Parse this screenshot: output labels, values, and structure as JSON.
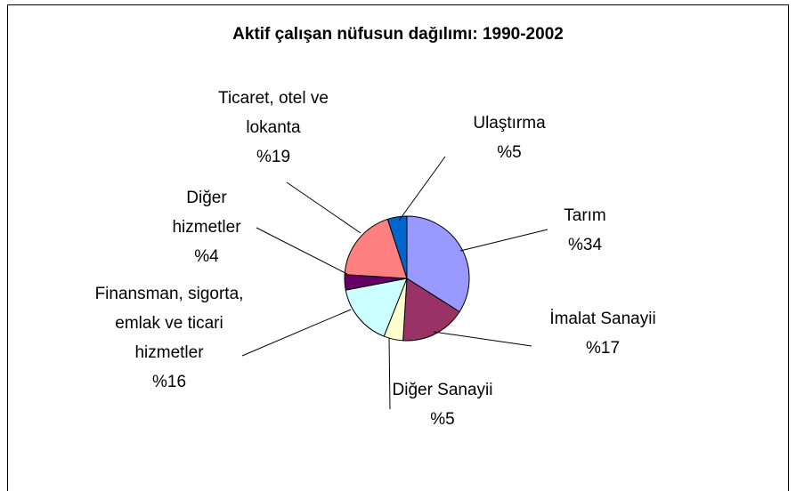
{
  "chart_data": {
    "type": "pie",
    "title": "Aktif çalışan nüfusun dağılımı: 1990-2002",
    "categories": [
      "Tarım",
      "İmalat Sanayii",
      "Diğer Sanayii",
      "Finansman, sigorta, emlak ve ticari hizmetler",
      "Diğer hizmetler",
      "Ticaret, otel ve lokanta",
      "Ulaştırma"
    ],
    "values": [
      34,
      17,
      5,
      16,
      4,
      19,
      5
    ],
    "value_labels": [
      "%34",
      "%17",
      "%5",
      "%16",
      "%4",
      "%19",
      "%5"
    ],
    "colors": [
      "#9999FF",
      "#993366",
      "#FFFFCC",
      "#CCFFFF",
      "#660066",
      "#FF8080",
      "#0066CC"
    ]
  }
}
